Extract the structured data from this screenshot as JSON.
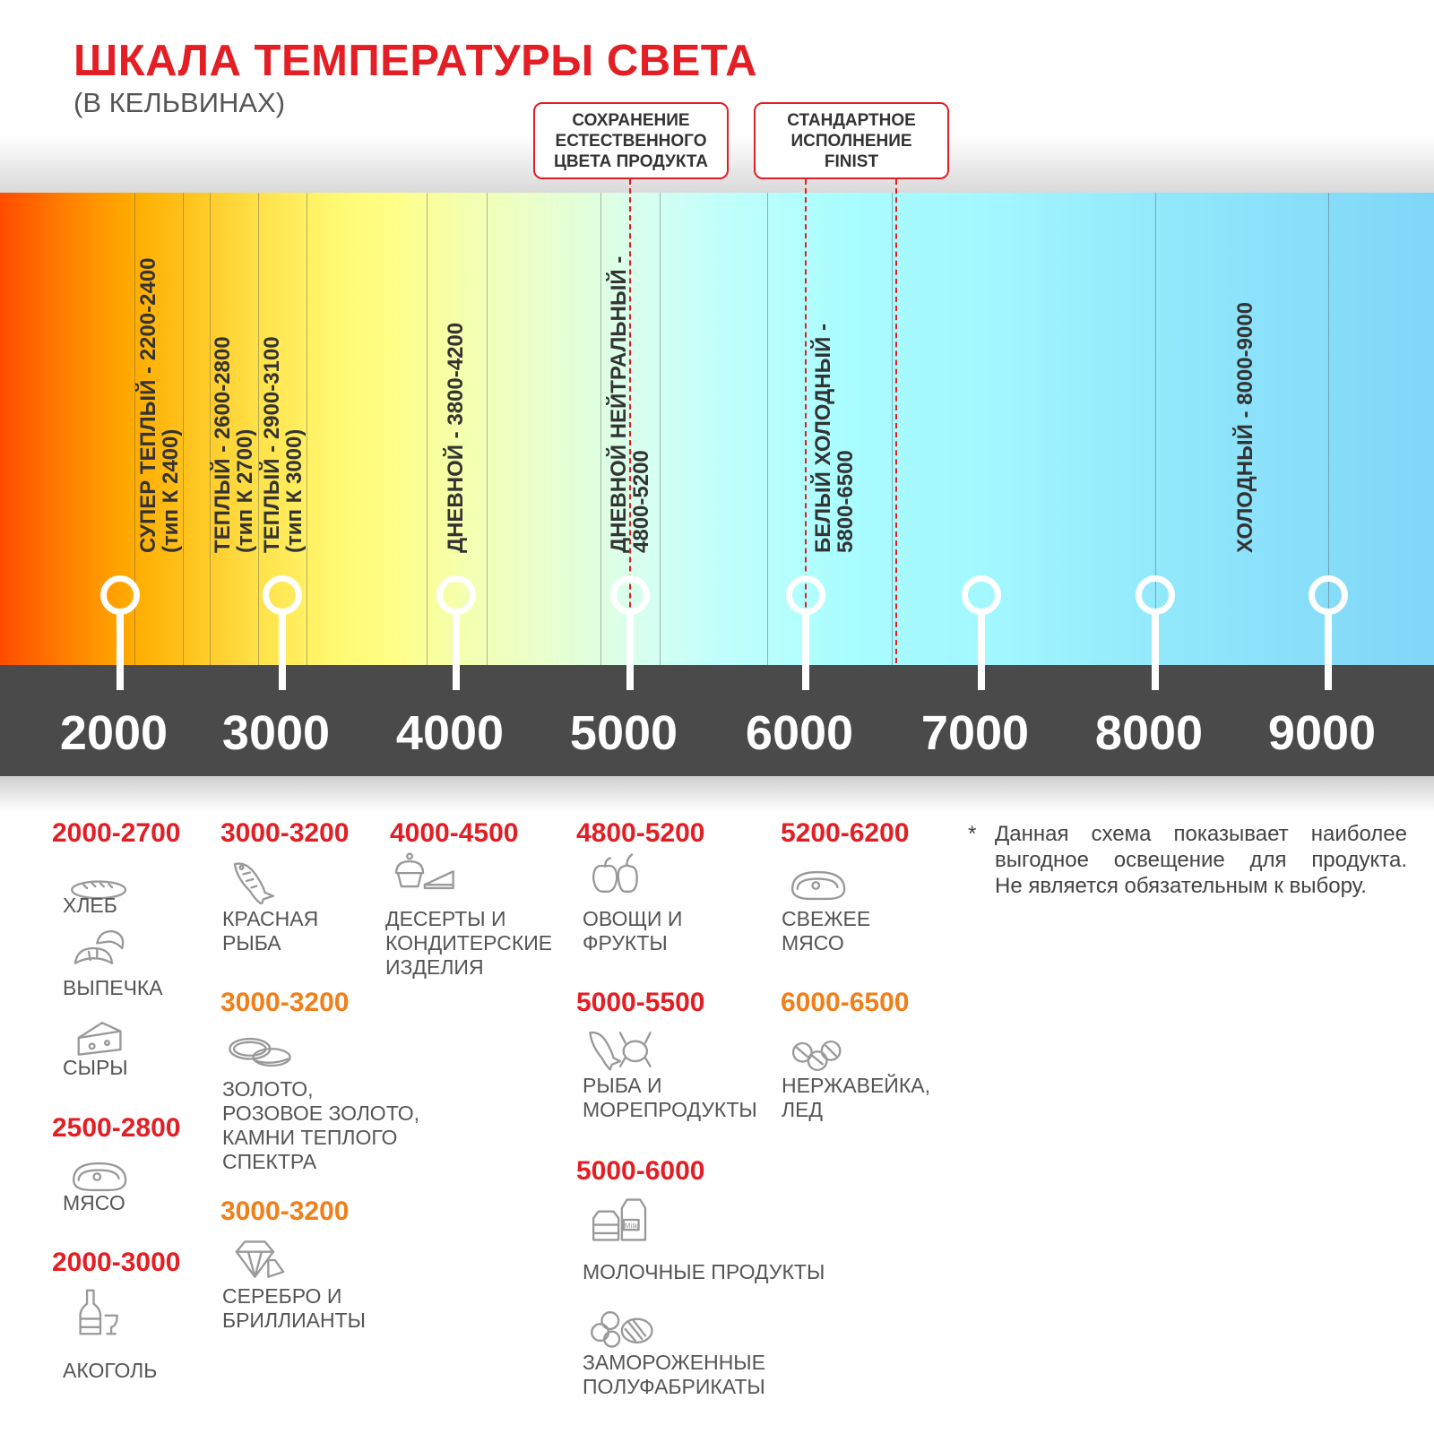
{
  "header": {
    "title": "ШКАЛА ТЕМПЕРАТУРЫ СВЕТА",
    "subtitle": "(В КЕЛЬВИНАХ)"
  },
  "callouts": [
    {
      "lines": [
        "СОХРАНЕНИЕ",
        "ЕСТЕСТВЕННОГО",
        "ЦВЕТА ПРОДУКТА"
      ],
      "marks_kelvin": [
        5000
      ]
    },
    {
      "lines": [
        "СТАНДАРТНОЕ",
        "ИСПОЛНЕНИЕ",
        "FINIST"
      ],
      "marks_kelvin": [
        6000,
        6500
      ]
    }
  ],
  "scale": {
    "unit": "K",
    "ticks": [
      "2000",
      "3000",
      "4000",
      "5000",
      "6000",
      "7000",
      "8000",
      "9000"
    ],
    "bands": [
      {
        "line1": "СУПЕР ТЕПЛЫЙ - 2200-2400",
        "line2": "(тип К 2400)"
      },
      {
        "line1": "ТЕПЛЫЙ - 2600-2800",
        "line2": "(тип К 2700)"
      },
      {
        "line1": "ТЕПЛЫЙ - 2900-3100",
        "line2": "(тип К 3000)"
      },
      {
        "line1": "ДНЕВНОЙ - 3800-4200",
        "line2": ""
      },
      {
        "line1": "ДНЕВНОЙ НЕЙТРАЛЬНЫЙ -",
        "line2": "4800-5200"
      },
      {
        "line1": "БЕЛЫЙ ХОЛОДНЫЙ -",
        "line2": "5800-6500"
      },
      {
        "line1": "ХОЛОДНЫЙ - 8000-9000",
        "line2": ""
      }
    ],
    "gradient_from": "#ff4c00",
    "gradient_to": "#7fd6f7"
  },
  "product_groups": [
    {
      "range": "2000-2700",
      "tone": "red",
      "items": [
        {
          "icon": "bread-icon",
          "label": [
            "ХЛЕБ"
          ]
        },
        {
          "icon": "croissant-icon",
          "label": [
            "ВЫПЕЧКА"
          ]
        },
        {
          "icon": "cheese-icon",
          "label": [
            "СЫРЫ"
          ]
        }
      ]
    },
    {
      "range": "2500-2800",
      "tone": "red",
      "items": [
        {
          "icon": "steak-icon",
          "label": [
            "МЯСО"
          ]
        }
      ]
    },
    {
      "range": "2000-3000",
      "tone": "red",
      "items": [
        {
          "icon": "bottle-glass-icon",
          "label": [
            "АКОГОЛЬ"
          ]
        }
      ]
    },
    {
      "range": "3000-3200",
      "tone": "red",
      "items": [
        {
          "icon": "fish-icon",
          "label": [
            "КРАСНАЯ",
            "РЫБА"
          ]
        }
      ]
    },
    {
      "range": "3000-3200",
      "tone": "orange",
      "items": [
        {
          "icon": "rings-icon",
          "label": [
            "ЗОЛОТО,",
            "РОЗОВОЕ ЗОЛОТО,",
            "КАМНИ ТЕПЛОГО",
            "СПЕКТРА"
          ]
        }
      ]
    },
    {
      "range": "3000-3200",
      "tone": "orange",
      "items": [
        {
          "icon": "diamond-icon",
          "label": [
            "СЕРЕБРО И",
            "БРИЛЛИАНТЫ"
          ]
        }
      ]
    },
    {
      "range": "4000-4500",
      "tone": "red",
      "items": [
        {
          "icon": "cupcake-cake-icon",
          "label": [
            "ДЕСЕРТЫ И",
            "КОНДИТЕРСКИЕ",
            "ИЗДЕЛИЯ"
          ]
        }
      ]
    },
    {
      "range": "4800-5200",
      "tone": "red",
      "items": [
        {
          "icon": "apple-pepper-icon",
          "label": [
            "ОВОЩИ И",
            "ФРУКТЫ"
          ]
        }
      ]
    },
    {
      "range": "5000-5500",
      "tone": "red",
      "items": [
        {
          "icon": "fish-crab-icon",
          "label": [
            "РЫБА И",
            "МОРЕПРОДУКТЫ"
          ]
        }
      ]
    },
    {
      "range": "5000-6000",
      "tone": "red",
      "items": [
        {
          "icon": "milk-cartons-icon",
          "label": [
            "МОЛОЧНЫЕ ПРОДУКТЫ"
          ],
          "icon_text": "Milk"
        },
        {
          "icon": "frozen-food-icon",
          "label": [
            "ЗАМОРОЖЕННЫЕ",
            "ПОЛУФАБРИКАТЫ"
          ]
        }
      ]
    },
    {
      "range": "5200-6200",
      "tone": "red",
      "items": [
        {
          "icon": "steak-icon",
          "label": [
            "СВЕЖЕЕ",
            "МЯСО"
          ]
        }
      ]
    },
    {
      "range": "6000-6500",
      "tone": "orange",
      "items": [
        {
          "icon": "ice-cubes-icon",
          "label": [
            "НЕРЖАВЕЙКА,",
            "ЛЕД"
          ]
        }
      ]
    }
  ],
  "footnote": {
    "marker": "*",
    "lines": [
      "Данная схема показывает наиболее",
      "выгодное освещение для продукта.",
      "Не является обязательным к выбору."
    ]
  },
  "colors": {
    "red": "#e31e24",
    "orange": "#f07f1a",
    "scale_band": "#4a4a4a",
    "label_text": "#555555",
    "icon_stroke": "#999999"
  }
}
